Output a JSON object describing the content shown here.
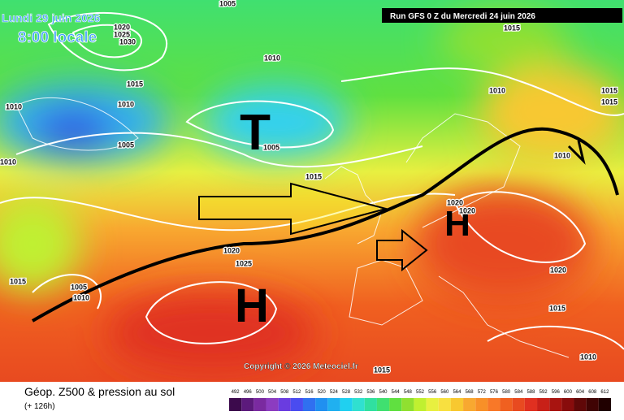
{
  "header": {
    "date": "Lundi 29 juin 2026",
    "time": "8:00 locale",
    "run": "Run GFS 0 Z du Mercredi 24 juin 2026"
  },
  "map": {
    "systems": [
      "T",
      "H",
      "H"
    ],
    "isobar_labels": [
      "1005",
      "1020",
      "1025",
      "1030",
      "1010",
      "1015",
      "1010",
      "1010",
      "1005",
      "1010",
      "1005",
      "1015",
      "1010",
      "1015",
      "1015",
      "1015",
      "1010",
      "1020",
      "1020",
      "1020",
      "1025",
      "1015",
      "1005",
      "1010",
      "1020",
      "1015",
      "1010",
      "1015"
    ],
    "copyright": "Copyright © 2026 Meteociel.fr"
  },
  "footer": {
    "title": "Géop. Z500 & pression au sol",
    "lead": "(+ 126h)",
    "scale": {
      "values": [
        492,
        496,
        500,
        504,
        508,
        512,
        516,
        520,
        524,
        528,
        532,
        536,
        540,
        544,
        548,
        552,
        556,
        560,
        564,
        568,
        572,
        576,
        580,
        584,
        588,
        592,
        596,
        600,
        604,
        608,
        612
      ],
      "colors": [
        "#3c0a4c",
        "#5c1a7c",
        "#7a2aa0",
        "#8c3cc0",
        "#6a3ce0",
        "#4a4cf0",
        "#3070f0",
        "#2090f0",
        "#20b0f0",
        "#20d0f0",
        "#30e0d0",
        "#30e0a0",
        "#40e070",
        "#60e040",
        "#90e030",
        "#c0f030",
        "#e8f040",
        "#f8e040",
        "#f8c830",
        "#f8a830",
        "#f89028",
        "#f87828",
        "#f06020",
        "#e84a20",
        "#e03020",
        "#c82018",
        "#a81410",
        "#880c0c",
        "#600808",
        "#400404",
        "#200000"
      ]
    }
  }
}
